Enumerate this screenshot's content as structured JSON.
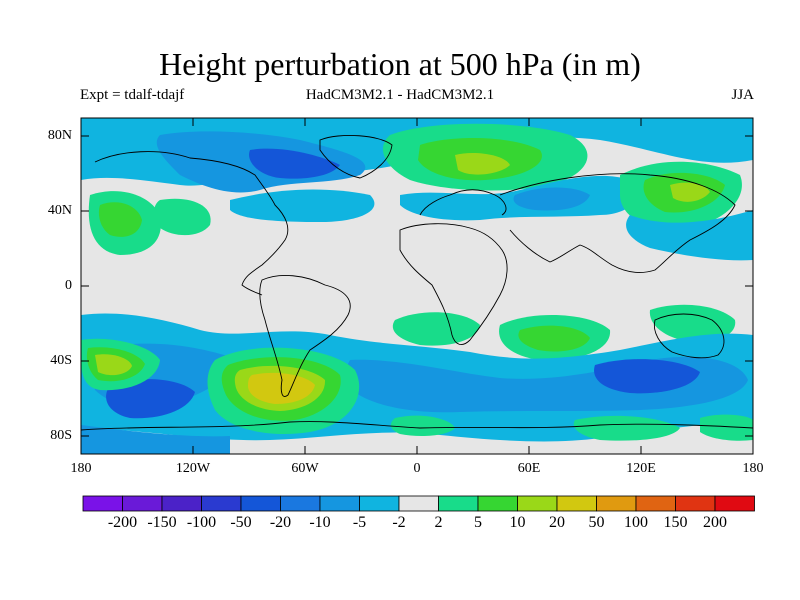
{
  "title": "Height perturbation at 500 hPa (in m)",
  "subtitle_left": "Expt = tdalf-tdajf",
  "subtitle_center": "HadCM3M2.1 - HadCM3M2.1",
  "subtitle_right": "JJA",
  "lat_labels": [
    "80N",
    "40N",
    "0",
    "40S",
    "80S"
  ],
  "lon_labels": [
    "180",
    "120W",
    "60W",
    "0",
    "60E",
    "120E",
    "180"
  ],
  "colorbar": {
    "labels": [
      "-200",
      "-150",
      "-100",
      "-50",
      "-20",
      "-10",
      "-5",
      "-2",
      "2",
      "5",
      "10",
      "20",
      "50",
      "100",
      "150",
      "200"
    ],
    "colors": [
      "#7a12e8",
      "#6a1ad8",
      "#4b22c8",
      "#2a3ad0",
      "#1456d8",
      "#1a78e0",
      "#1596e0",
      "#10b4e0",
      "#e6e6e6",
      "#18dc8a",
      "#36d632",
      "#9ad818",
      "#d2c810",
      "#e09a10",
      "#e06412",
      "#e03412",
      "#e00a12"
    ]
  },
  "chart_data": {
    "type": "contour-map",
    "title": "Height perturbation at 500 hPa (in m)",
    "experiment": "tdalf-tdajf",
    "models": "HadCM3M2.1 - HadCM3M2.1",
    "season": "JJA",
    "lon_range": [
      -180,
      180
    ],
    "lat_range": [
      -90,
      90
    ],
    "contour_levels": [
      -200,
      -150,
      -100,
      -50,
      -20,
      -10,
      -5,
      -2,
      2,
      5,
      10,
      20,
      50,
      100,
      150,
      200
    ],
    "features": [
      {
        "lon": -80,
        "lat": -52,
        "value": 50,
        "name": "positive anomaly south of South America"
      },
      {
        "lon": -160,
        "lat": -45,
        "value": 20,
        "name": "positive anomaly south Pacific"
      },
      {
        "lon": 30,
        "lat": 65,
        "value": 20,
        "name": "positive anomaly Scandinavia"
      },
      {
        "lon": 150,
        "lat": 50,
        "value": 20,
        "name": "positive anomaly NW Pacific"
      },
      {
        "lon": 100,
        "lat": -45,
        "value": -10,
        "name": "negative anomaly southern Indian Ocean"
      },
      {
        "lon": -140,
        "lat": -65,
        "value": -20,
        "name": "negative anomaly Southern Ocean Pacific sector"
      },
      {
        "lon": 30,
        "lat": 45,
        "value": -10,
        "name": "negative anomaly Mediterranean/Black Sea"
      }
    ]
  }
}
